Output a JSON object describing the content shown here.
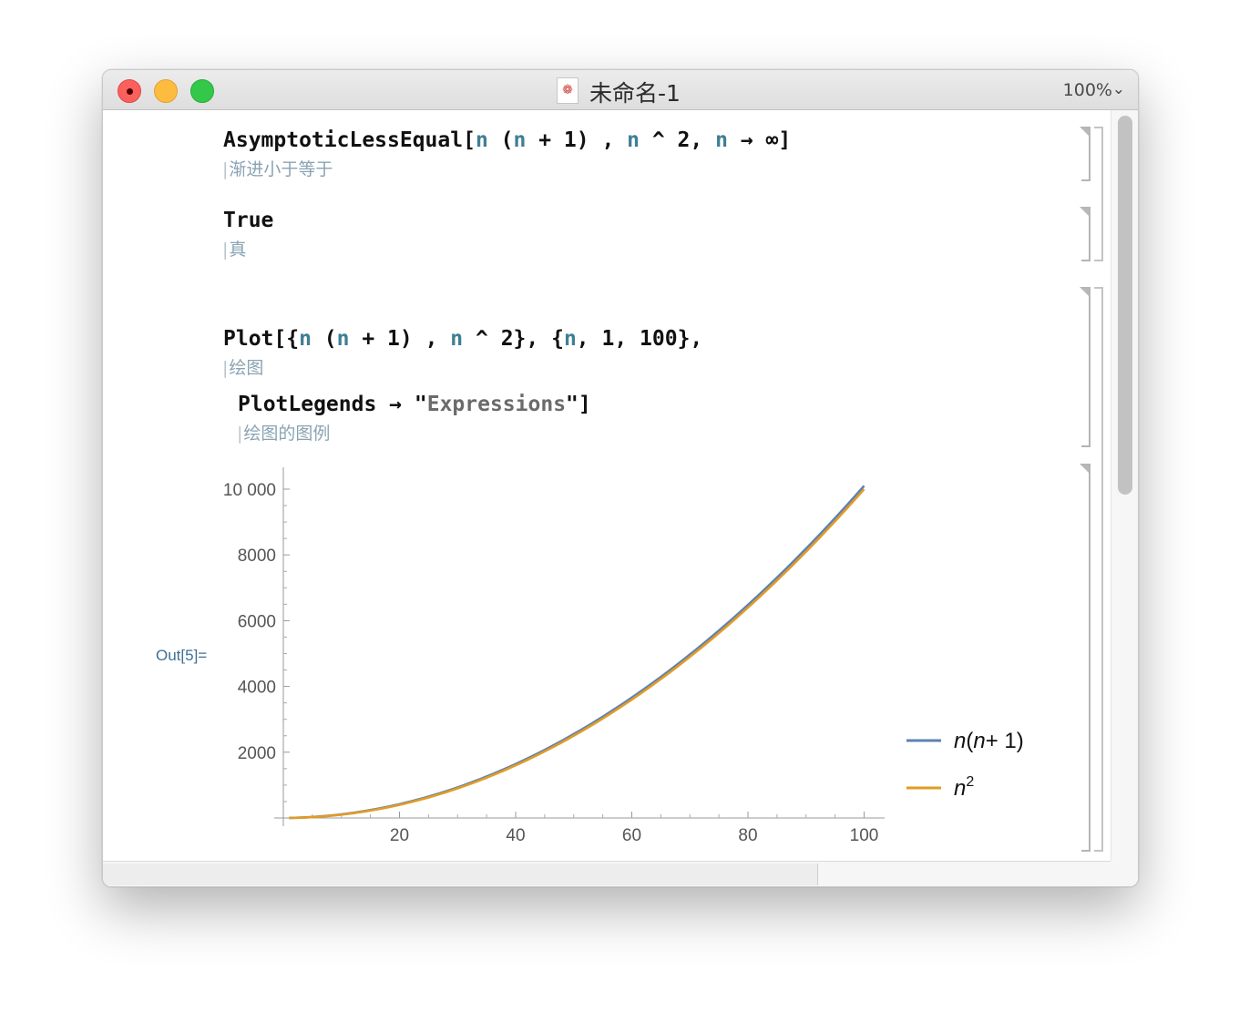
{
  "window": {
    "title": "未命名-1",
    "zoom": "100%",
    "icon_glyph": "❁",
    "zoom_chevron": "⌄"
  },
  "cells": {
    "c1": {
      "parts": [
        "AsymptoticLessEqual[",
        "n",
        " (",
        "n",
        " + 1) , ",
        "n",
        " ^ 2, ",
        "n",
        " → ∞]"
      ],
      "hint": "渐进小于等于"
    },
    "c2": {
      "text": "True",
      "hint": "真"
    },
    "c3": {
      "parts": [
        "Plot[{",
        "n",
        " (",
        "n",
        " + 1) , ",
        "n",
        " ^ 2}, {",
        "n",
        ", 1, 100},"
      ],
      "hint": "绘图"
    },
    "c4": {
      "parts": [
        "PlotLegends → \"",
        "Expressions",
        "\"]"
      ],
      "hint": "绘图的图例"
    }
  },
  "output": {
    "label": "Out[5]="
  },
  "chart_data": {
    "type": "line",
    "x_ticks": [
      "20",
      "40",
      "60",
      "80",
      "100"
    ],
    "y_ticks": [
      "2000",
      "4000",
      "6000",
      "8000",
      "10 000"
    ],
    "xlim": [
      1,
      100
    ],
    "ylim": [
      0,
      10100
    ],
    "series": [
      {
        "name": "n(n+1)",
        "color": "#5e81b5",
        "x": [
          1,
          10,
          20,
          30,
          40,
          50,
          60,
          70,
          80,
          90,
          100
        ],
        "y": [
          2,
          110,
          420,
          930,
          1640,
          2550,
          3660,
          4970,
          6480,
          8190,
          10100
        ]
      },
      {
        "name": "n²",
        "color": "#e19c24",
        "x": [
          1,
          10,
          20,
          30,
          40,
          50,
          60,
          70,
          80,
          90,
          100
        ],
        "y": [
          1,
          100,
          400,
          900,
          1600,
          2500,
          3600,
          4900,
          6400,
          8100,
          10000
        ]
      }
    ],
    "legend": [
      "n(n+1)",
      "n2"
    ],
    "legend_position": "right",
    "grid": false
  }
}
